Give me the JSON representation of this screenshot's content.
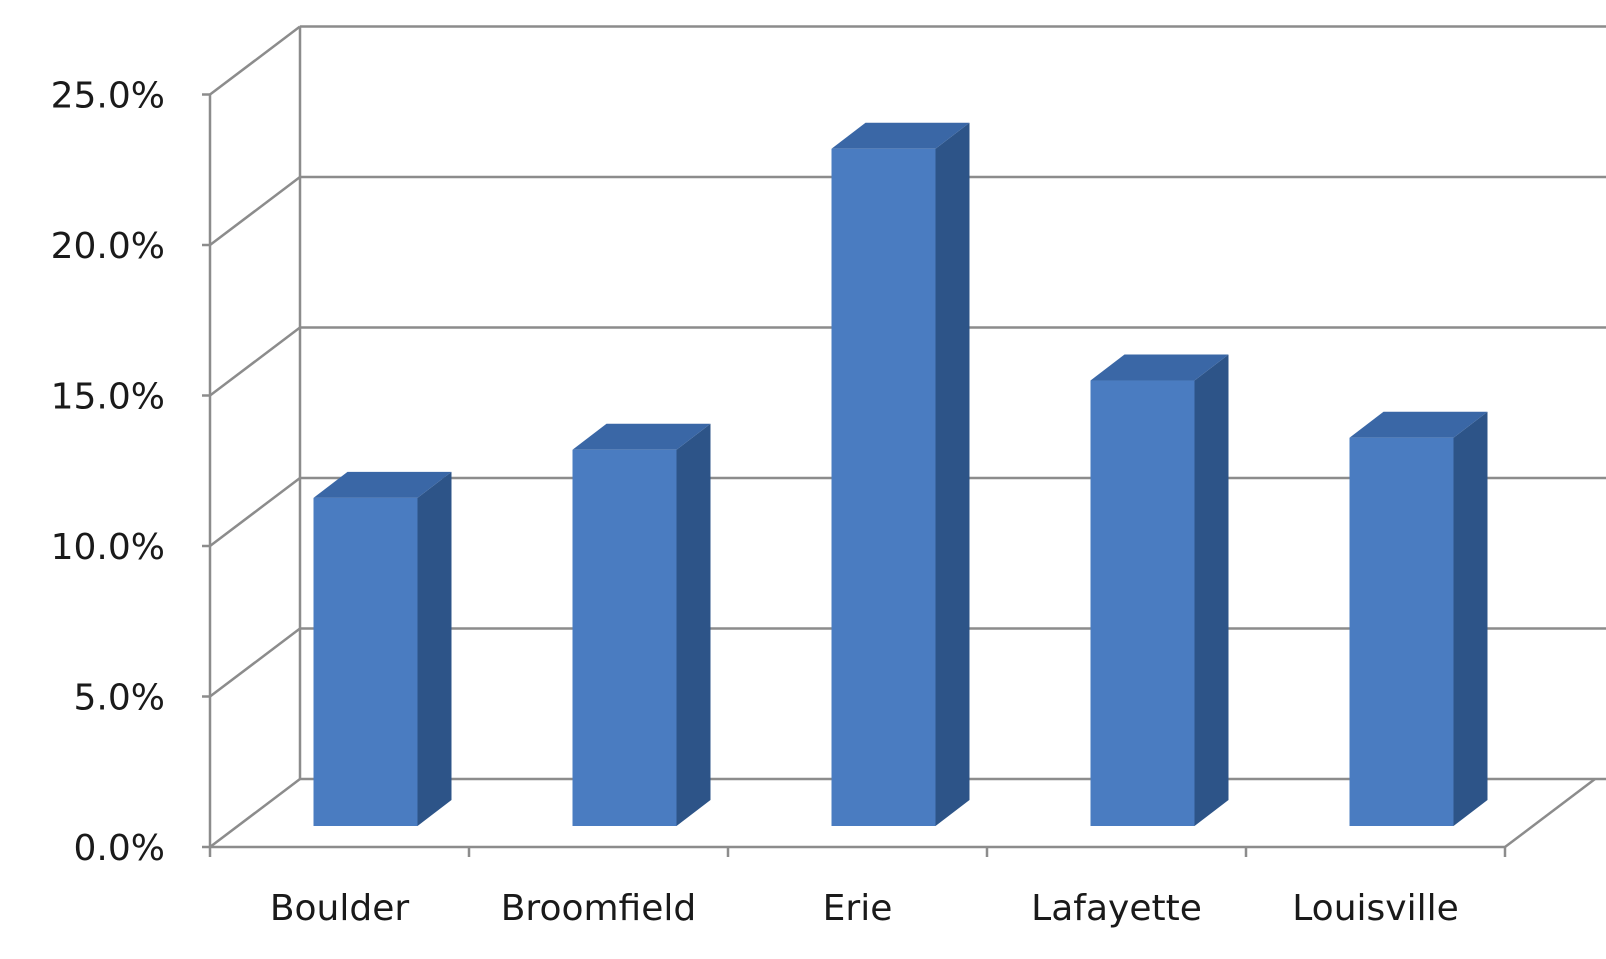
{
  "colors": {
    "bar_front": "#4a7cc1",
    "bar_side": "#2d5488",
    "bar_top": "#3a67a6",
    "gridline": "#8c8c8c",
    "axis": "#8c8c8c",
    "text": "#1a1a1a"
  },
  "chart_data": {
    "type": "bar",
    "style": "3d-column",
    "title": "",
    "xlabel": "",
    "ylabel": "",
    "categories": [
      "Boulder",
      "Broomfield",
      "Erie",
      "Lafayette",
      "Louisville"
    ],
    "values": [
      10.9,
      12.5,
      22.5,
      14.8,
      12.9
    ],
    "ylim": [
      0,
      25
    ],
    "y_ticks": [
      0,
      5,
      10,
      15,
      20,
      25
    ],
    "y_tick_labels": [
      "0.0%",
      "5.0%",
      "10.0%",
      "15.0%",
      "20.0%",
      "25.0%"
    ],
    "grid": true,
    "legend": "none"
  }
}
